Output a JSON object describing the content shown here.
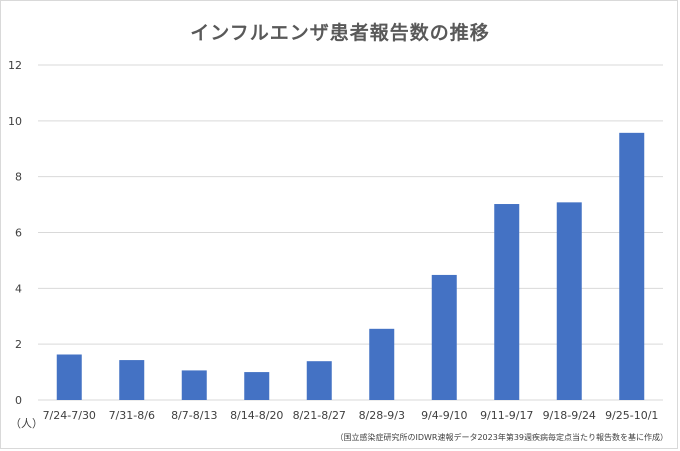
{
  "chart_data": {
    "type": "bar",
    "title": "インフルエンザ患者報告数の推移",
    "xlabel": "",
    "ylabel": "",
    "unit_label": "（人）",
    "categories": [
      "7/24-7/30",
      "7/31-8/6",
      "8/7-8/13",
      "8/14-8/20",
      "8/21-8/27",
      "8/28-9/3",
      "9/4-9/10",
      "9/11-9/17",
      "9/18-9/24",
      "9/25-10/1"
    ],
    "values": [
      1.63,
      1.43,
      1.06,
      1.0,
      1.39,
      2.55,
      4.48,
      7.02,
      7.08,
      9.57
    ],
    "ylim": [
      0,
      12
    ],
    "yticks": [
      0,
      2,
      4,
      6,
      8,
      10,
      12
    ],
    "grid": true,
    "legend": "none",
    "bar_color": "#4472c4",
    "grid_color": "#d9d9d9",
    "source_note": "（国立感染症研究所のIDWR速報データ2023年第39週疾病毎定点当たり報告数を基に作成）"
  }
}
